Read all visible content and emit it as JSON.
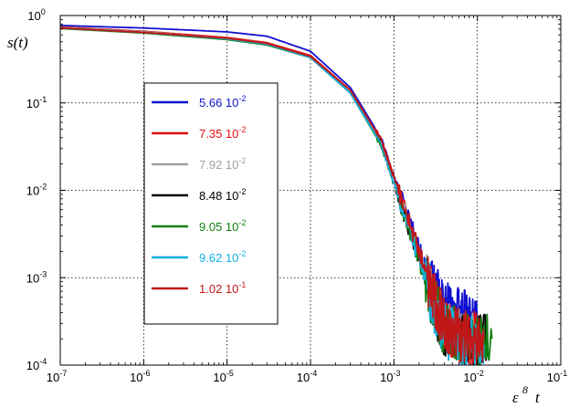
{
  "chart_data": {
    "type": "line",
    "xscale": "log",
    "yscale": "log",
    "xlim": [
      1e-07,
      0.1
    ],
    "ylim": [
      0.0001,
      1
    ],
    "grid": true,
    "legend_position": "left",
    "ylabel": "s(t)",
    "xlabel": "ε",
    "xlabel_exponent": "8",
    "xlabel_variable": "t",
    "x_ticks": [
      {
        "base": "10",
        "exp": "-7"
      },
      {
        "base": "10",
        "exp": "-6"
      },
      {
        "base": "10",
        "exp": "-5"
      },
      {
        "base": "10",
        "exp": "-4"
      },
      {
        "base": "10",
        "exp": "-3"
      },
      {
        "base": "10",
        "exp": "-2"
      },
      {
        "base": "10",
        "exp": "-1"
      }
    ],
    "y_ticks": [
      {
        "base": "10",
        "exp": "-4"
      },
      {
        "base": "10",
        "exp": "-3"
      },
      {
        "base": "10",
        "exp": "-2"
      },
      {
        "base": "10",
        "exp": "-1"
      },
      {
        "base": "10",
        "exp": "0"
      }
    ],
    "series": [
      {
        "name": "5.66 10",
        "name_exp": "-2",
        "color": "#1010d0",
        "x": [
          1e-07,
          1e-06,
          1e-05,
          3e-05,
          0.0001,
          0.0003,
          0.0007,
          0.001,
          0.002,
          0.003,
          0.004,
          0.005,
          0.007,
          0.01
        ],
        "y": [
          0.77,
          0.72,
          0.65,
          0.58,
          0.39,
          0.15,
          0.04,
          0.015,
          0.0022,
          0.0007,
          0.00045,
          0.0004,
          0.00035,
          0.0003
        ]
      },
      {
        "name": "7.35 10",
        "name_exp": "-2",
        "color": "#e01010",
        "x": [
          1e-07,
          1e-06,
          1e-05,
          3e-05,
          0.0001,
          0.0003,
          0.0007,
          0.001,
          0.002,
          0.003,
          0.004,
          0.005,
          0.007,
          0.012
        ],
        "y": [
          0.74,
          0.66,
          0.56,
          0.49,
          0.35,
          0.14,
          0.038,
          0.014,
          0.002,
          0.0006,
          0.0003,
          0.00025,
          0.0002,
          0.0002
        ]
      },
      {
        "name": "7.92 10",
        "name_exp": "-2",
        "color": "#a0a0a0",
        "x": [
          1e-07,
          1e-06,
          1e-05,
          3e-05,
          0.0001,
          0.0003,
          0.0007,
          0.001,
          0.002,
          0.003,
          0.004,
          0.005,
          0.007,
          0.013
        ],
        "y": [
          0.73,
          0.65,
          0.55,
          0.48,
          0.34,
          0.13,
          0.035,
          0.013,
          0.0018,
          0.0005,
          0.00028,
          0.00024,
          0.0002,
          0.0002
        ]
      },
      {
        "name": "8.48 10",
        "name_exp": "-2",
        "color": "#000000",
        "x": [
          1e-07,
          1e-06,
          1e-05,
          3e-05,
          0.0001,
          0.0003,
          0.0007,
          0.001,
          0.002,
          0.003,
          0.004,
          0.005,
          0.007,
          0.013
        ],
        "y": [
          0.72,
          0.64,
          0.54,
          0.47,
          0.33,
          0.13,
          0.034,
          0.012,
          0.0017,
          0.0005,
          0.00025,
          0.00022,
          0.0002,
          0.00018
        ]
      },
      {
        "name": "9.05 10",
        "name_exp": "-2",
        "color": "#108010",
        "x": [
          1e-07,
          1e-06,
          1e-05,
          3e-05,
          0.0001,
          0.0003,
          0.0007,
          0.001,
          0.002,
          0.003,
          0.004,
          0.005,
          0.007,
          0.015
        ],
        "y": [
          0.71,
          0.63,
          0.53,
          0.46,
          0.33,
          0.13,
          0.033,
          0.012,
          0.0016,
          0.0005,
          0.00026,
          0.00024,
          0.0002,
          0.0002
        ]
      },
      {
        "name": "9.62 10",
        "name_exp": "-2",
        "color": "#10b0e0",
        "x": [
          1e-07,
          1e-06,
          1e-05,
          3e-05,
          0.0001,
          0.0003,
          0.0007,
          0.001,
          0.002,
          0.003,
          0.004,
          0.005,
          0.007,
          0.012
        ],
        "y": [
          0.72,
          0.64,
          0.54,
          0.47,
          0.33,
          0.13,
          0.034,
          0.012,
          0.0017,
          0.0005,
          0.00026,
          0.00022,
          0.00018,
          0.00017
        ]
      },
      {
        "name": "1.02 10",
        "name_exp": "-1",
        "color": "#c01818",
        "x": [
          1e-07,
          1e-06,
          1e-05,
          3e-05,
          0.0001,
          0.0003,
          0.0007,
          0.001,
          0.002,
          0.003,
          0.004,
          0.005,
          0.007,
          0.012
        ],
        "y": [
          0.72,
          0.64,
          0.55,
          0.48,
          0.34,
          0.14,
          0.038,
          0.014,
          0.002,
          0.0006,
          0.0003,
          0.00025,
          0.0002,
          0.0002
        ]
      }
    ]
  }
}
